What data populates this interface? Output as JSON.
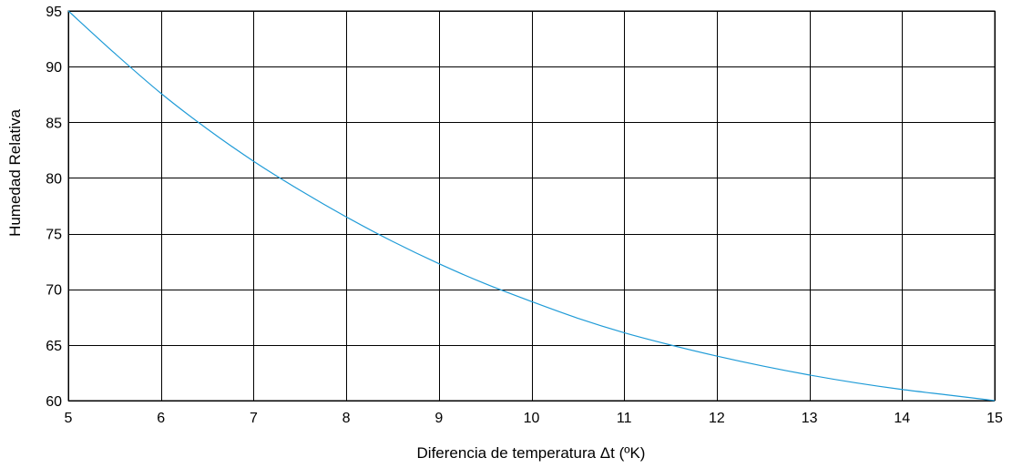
{
  "chart_data": {
    "type": "line",
    "title": "",
    "xlabel": "Diferencia de temperatura  Δt (ºK)",
    "ylabel": "Humedad Relativa",
    "xlim": [
      5,
      15
    ],
    "ylim": [
      60,
      95
    ],
    "xticks": [
      5,
      6,
      7,
      8,
      9,
      10,
      11,
      12,
      13,
      14,
      15
    ],
    "yticks": [
      60,
      65,
      70,
      75,
      80,
      85,
      90,
      95
    ],
    "grid": true,
    "legend": "none",
    "series": [
      {
        "color": "#1f9bd7",
        "x": [
          5,
          5.5,
          6,
          6.5,
          7,
          7.5,
          8,
          8.5,
          9,
          9.5,
          10,
          10.5,
          11,
          11.5,
          12,
          12.5,
          13,
          13.5,
          14,
          14.5,
          15
        ],
        "y": [
          95,
          91.2,
          87.6,
          84.4,
          81.5,
          78.9,
          76.5,
          74.3,
          72.3,
          70.5,
          68.9,
          67.4,
          66.1,
          65,
          64,
          63.1,
          62.3,
          61.6,
          61,
          60.5,
          60
        ]
      }
    ]
  }
}
